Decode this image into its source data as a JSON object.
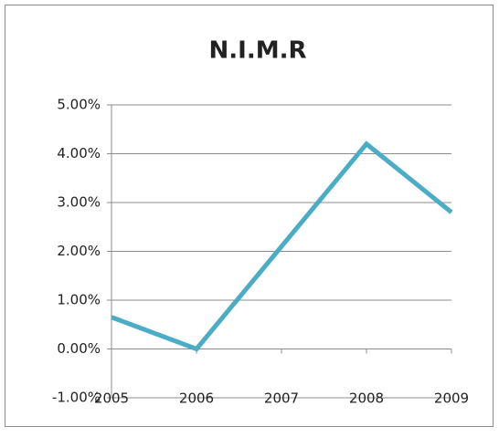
{
  "chart_data": {
    "type": "line",
    "title": "N.I.M.R",
    "categories": [
      "2005",
      "2006",
      "2007",
      "2008",
      "2009"
    ],
    "series": [
      {
        "name": "N.I.M.R",
        "color": "#4bacc6",
        "values": [
          0.65,
          0.0,
          2.1,
          4.2,
          2.8
        ]
      }
    ],
    "ylim": [
      -1,
      5
    ],
    "yticks": [
      {
        "value": -1,
        "label": "-1.00%"
      },
      {
        "value": 0,
        "label": "0.00%"
      },
      {
        "value": 1,
        "label": "1.00%"
      },
      {
        "value": 2,
        "label": "2.00%"
      },
      {
        "value": 3,
        "label": "3.00%"
      },
      {
        "value": 4,
        "label": "4.00%"
      },
      {
        "value": 5,
        "label": "5.00%"
      }
    ],
    "grid": true
  }
}
